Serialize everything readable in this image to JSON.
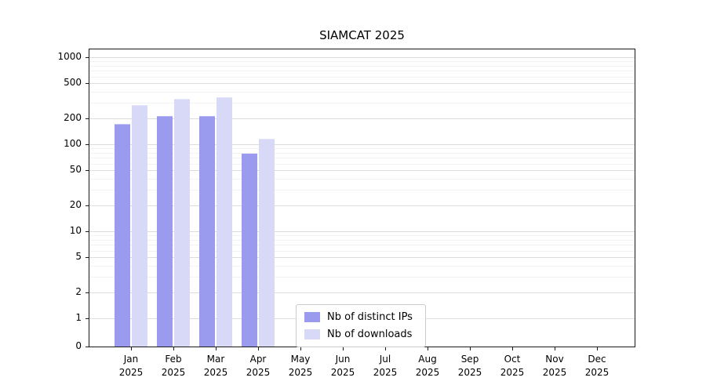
{
  "chart_data": {
    "type": "bar",
    "title": "SIAMCAT 2025",
    "categories": [
      "Jan 2025",
      "Feb 2025",
      "Mar 2025",
      "Apr 2025",
      "May 2025",
      "Jun 2025",
      "Jul 2025",
      "Aug 2025",
      "Sep 2025",
      "Oct 2025",
      "Nov 2025",
      "Dec 2025"
    ],
    "series": [
      {
        "name": "Nb of distinct IPs",
        "color": "#9a9aee",
        "values": [
          170,
          210,
          210,
          78,
          0,
          0,
          0,
          0,
          0,
          0,
          0,
          0
        ]
      },
      {
        "name": "Nb of downloads",
        "color": "#d8d8f7",
        "values": [
          280,
          330,
          345,
          115,
          0,
          0,
          0,
          0,
          0,
          0,
          0,
          0
        ]
      }
    ],
    "yscale": "symlog",
    "yticks": [
      0,
      1,
      2,
      5,
      10,
      20,
      50,
      100,
      200,
      500,
      1000
    ],
    "ylim": [
      0,
      1200
    ],
    "grid": true,
    "legend_position": "lower center"
  }
}
